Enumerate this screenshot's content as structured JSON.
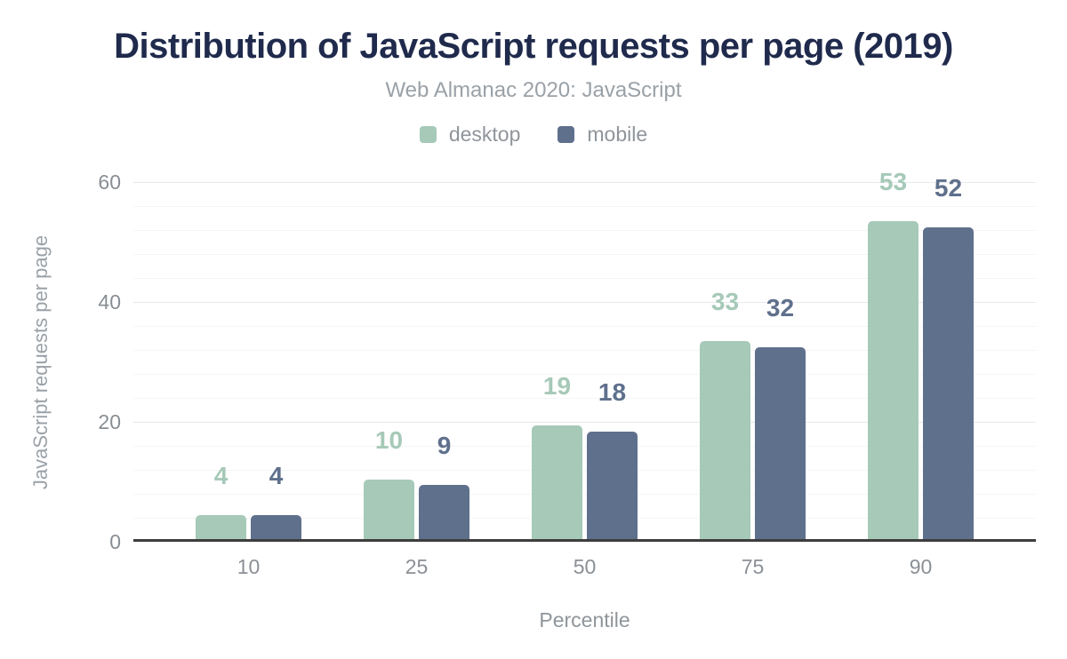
{
  "header": {
    "title": "Distribution of JavaScript requests per page (2019)",
    "subtitle": "Web Almanac 2020: JavaScript"
  },
  "colors": {
    "title": "#1f2a4c",
    "subtitle_gray": "#9aa1a7",
    "axis_text_gray": "#888e94",
    "axis_line": "#3d3d3d",
    "major_gridline": "#e7e9eb",
    "minor_gridline": "#f4f5f6",
    "desktop": "#a6c9b8",
    "mobile": "#5f708c"
  },
  "chart_data": {
    "type": "bar",
    "title": "Distribution of JavaScript requests per page (2019)",
    "subtitle": "Web Almanac 2020: JavaScript",
    "categories": [
      "10",
      "25",
      "50",
      "75",
      "90"
    ],
    "series": [
      {
        "name": "desktop",
        "color": "#a6c9b8",
        "values": [
          4,
          10,
          19,
          33,
          53
        ]
      },
      {
        "name": "mobile",
        "color": "#5f708c",
        "values": [
          4,
          9,
          18,
          32,
          52
        ]
      }
    ],
    "xlabel": "Percentile",
    "ylabel": "JavaScript requests per page",
    "ylim": [
      0,
      60
    ],
    "yticks": [
      0,
      20,
      40,
      60
    ],
    "minor_gridline_step": 4,
    "grid": true,
    "legend_position": "top",
    "value_labels_shown": true
  }
}
